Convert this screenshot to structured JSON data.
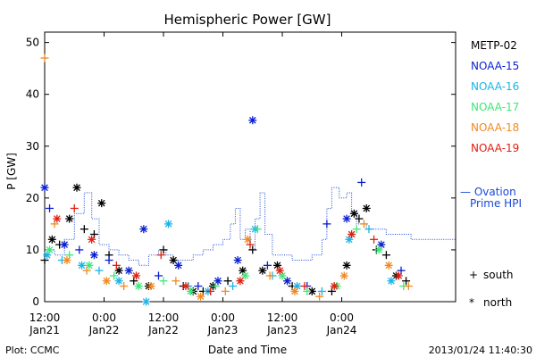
{
  "chart_data": {
    "type": "scatter",
    "title": "Hemispheric Power [GW]",
    "ylabel": "P [GW]",
    "xlabel": "Date and Time",
    "ylim": [
      0,
      52
    ],
    "xlim": [
      "2013-01-21 12:00",
      "2013-01-24 23:00"
    ],
    "y_ticks": [
      0,
      10,
      20,
      30,
      40,
      50
    ],
    "x_ticks": [
      {
        "time": "2013-01-21 12:00",
        "label": "12:00",
        "sub": "Jan21"
      },
      {
        "time": "2013-01-22 00:00",
        "label": "0:00",
        "sub": "Jan22"
      },
      {
        "time": "2013-01-22 12:00",
        "label": "12:00",
        "sub": "Jan22"
      },
      {
        "time": "2013-01-23 00:00",
        "label": "0:00",
        "sub": "Jan23"
      },
      {
        "time": "2013-01-23 12:00",
        "label": "12:00",
        "sub": "Jan23"
      },
      {
        "time": "2013-01-24 00:00",
        "label": "0:00",
        "sub": "Jan24"
      }
    ],
    "legend": [
      {
        "name": "METP-02",
        "color": "#000000"
      },
      {
        "name": "NOAA-15",
        "color": "#0a1fd0"
      },
      {
        "name": "NOAA-16",
        "color": "#1ab4e8"
      },
      {
        "name": "NOAA-17",
        "color": "#3ce878"
      },
      {
        "name": "NOAA-18",
        "color": "#f08a20"
      },
      {
        "name": "NOAA-19",
        "color": "#e02010"
      }
    ],
    "ovation": {
      "label_line1": "— Ovation",
      "label_line2": "Prime HPI",
      "color": "#1a48d8",
      "series": [
        [
          "2013-01-21 12:00",
          10
        ],
        [
          "2013-01-21 14:00",
          9
        ],
        [
          "2013-01-21 16:00",
          12
        ],
        [
          "2013-01-21 18:00",
          17
        ],
        [
          "2013-01-21 20:00",
          21
        ],
        [
          "2013-01-21 21:30",
          16
        ],
        [
          "2013-01-21 23:00",
          11
        ],
        [
          "2013-01-22 01:00",
          10
        ],
        [
          "2013-01-22 03:00",
          9
        ],
        [
          "2013-01-22 05:00",
          8
        ],
        [
          "2013-01-22 07:00",
          7
        ],
        [
          "2013-01-22 09:00",
          9
        ],
        [
          "2013-01-22 11:00",
          10
        ],
        [
          "2013-01-22 12:30",
          9
        ],
        [
          "2013-01-22 14:00",
          8
        ],
        [
          "2013-01-22 16:00",
          8
        ],
        [
          "2013-01-22 18:00",
          9
        ],
        [
          "2013-01-22 20:00",
          10
        ],
        [
          "2013-01-22 22:00",
          11
        ],
        [
          "2013-01-23 00:00",
          12
        ],
        [
          "2013-01-23 01:30",
          15
        ],
        [
          "2013-01-23 02:30",
          18
        ],
        [
          "2013-01-23 03:30",
          12
        ],
        [
          "2013-01-23 04:30",
          14
        ],
        [
          "2013-01-23 05:30",
          10
        ],
        [
          "2013-01-23 06:30",
          16
        ],
        [
          "2013-01-23 07:30",
          21
        ],
        [
          "2013-01-23 08:30",
          13
        ],
        [
          "2013-01-23 10:00",
          9
        ],
        [
          "2013-01-23 12:00",
          9
        ],
        [
          "2013-01-23 14:00",
          8
        ],
        [
          "2013-01-23 16:00",
          8
        ],
        [
          "2013-01-23 18:00",
          9
        ],
        [
          "2013-01-23 20:00",
          12
        ],
        [
          "2013-01-23 21:00",
          18
        ],
        [
          "2013-01-23 22:00",
          22
        ],
        [
          "2013-01-23 23:30",
          20
        ],
        [
          "2013-01-24 01:00",
          21
        ],
        [
          "2013-01-24 02:00",
          17
        ],
        [
          "2013-01-24 03:00",
          15
        ],
        [
          "2013-01-24 05:00",
          14
        ],
        [
          "2013-01-24 07:00",
          14
        ],
        [
          "2013-01-24 09:00",
          13
        ],
        [
          "2013-01-24 11:00",
          13
        ],
        [
          "2013-01-24 14:00",
          12
        ]
      ]
    },
    "series": [
      {
        "name": "METP-02",
        "color": "#000000",
        "points": [
          [
            "2013-01-21 12:00",
            8,
            "s"
          ],
          [
            "2013-01-21 13:30",
            12,
            "n"
          ],
          [
            "2013-01-21 15:00",
            11,
            "s"
          ],
          [
            "2013-01-21 17:00",
            16,
            "n"
          ],
          [
            "2013-01-21 18:30",
            22,
            "n"
          ],
          [
            "2013-01-21 20:00",
            14,
            "s"
          ],
          [
            "2013-01-21 22:00",
            13,
            "s"
          ],
          [
            "2013-01-21 23:30",
            19,
            "n"
          ],
          [
            "2013-01-22 01:00",
            9,
            "s"
          ],
          [
            "2013-01-22 03:00",
            6,
            "n"
          ],
          [
            "2013-01-22 06:00",
            4,
            "s"
          ],
          [
            "2013-01-22 09:00",
            3,
            "n"
          ],
          [
            "2013-01-22 12:00",
            10,
            "s"
          ],
          [
            "2013-01-22 14:00",
            8,
            "n"
          ],
          [
            "2013-01-22 16:00",
            3,
            "s"
          ],
          [
            "2013-01-22 18:00",
            2,
            "n"
          ],
          [
            "2013-01-22 20:00",
            2,
            "s"
          ],
          [
            "2013-01-22 22:00",
            3,
            "n"
          ],
          [
            "2013-01-23 01:00",
            4,
            "s"
          ],
          [
            "2013-01-23 04:00",
            6,
            "n"
          ],
          [
            "2013-01-23 06:00",
            10,
            "s"
          ],
          [
            "2013-01-23 08:00",
            6,
            "n"
          ],
          [
            "2013-01-23 11:00",
            7,
            "n"
          ],
          [
            "2013-01-23 14:00",
            3,
            "s"
          ],
          [
            "2013-01-23 18:00",
            2,
            "n"
          ],
          [
            "2013-01-23 22:00",
            2,
            "s"
          ],
          [
            "2013-01-24 01:00",
            7,
            "n"
          ],
          [
            "2013-01-24 02:30",
            17,
            "n"
          ],
          [
            "2013-01-24 03:30",
            16,
            "s"
          ],
          [
            "2013-01-24 05:00",
            18,
            "n"
          ],
          [
            "2013-01-24 07:00",
            10,
            "s"
          ],
          [
            "2013-01-24 09:00",
            9,
            "s"
          ],
          [
            "2013-01-24 11:00",
            5,
            "n"
          ],
          [
            "2013-01-24 13:00",
            4,
            "s"
          ]
        ]
      },
      {
        "name": "NOAA-15",
        "color": "#0a1fd0",
        "points": [
          [
            "2013-01-21 12:00",
            22,
            "n"
          ],
          [
            "2013-01-21 13:00",
            18,
            "s"
          ],
          [
            "2013-01-21 16:00",
            11,
            "n"
          ],
          [
            "2013-01-21 19:00",
            10,
            "s"
          ],
          [
            "2013-01-21 22:00",
            9,
            "n"
          ],
          [
            "2013-01-22 01:00",
            8,
            "s"
          ],
          [
            "2013-01-22 05:00",
            6,
            "n"
          ],
          [
            "2013-01-22 08:00",
            14,
            "n"
          ],
          [
            "2013-01-22 11:00",
            5,
            "s"
          ],
          [
            "2013-01-22 15:00",
            7,
            "n"
          ],
          [
            "2013-01-22 19:00",
            3,
            "s"
          ],
          [
            "2013-01-22 23:00",
            4,
            "n"
          ],
          [
            "2013-01-23 03:00",
            8,
            "n"
          ],
          [
            "2013-01-23 06:00",
            35,
            "n"
          ],
          [
            "2013-01-23 09:00",
            7,
            "s"
          ],
          [
            "2013-01-23 13:00",
            4,
            "n"
          ],
          [
            "2013-01-23 17:00",
            3,
            "s"
          ],
          [
            "2013-01-23 21:00",
            15,
            "s"
          ],
          [
            "2013-01-24 01:00",
            16,
            "n"
          ],
          [
            "2013-01-24 04:00",
            23,
            "s"
          ],
          [
            "2013-01-24 08:00",
            11,
            "n"
          ],
          [
            "2013-01-24 12:00",
            6,
            "s"
          ]
        ]
      },
      {
        "name": "NOAA-16",
        "color": "#1ab4e8",
        "points": [
          [
            "2013-01-21 12:30",
            9,
            "n"
          ],
          [
            "2013-01-21 15:30",
            8,
            "s"
          ],
          [
            "2013-01-21 19:30",
            7,
            "n"
          ],
          [
            "2013-01-21 23:00",
            6,
            "s"
          ],
          [
            "2013-01-22 03:00",
            4,
            "n"
          ],
          [
            "2013-01-22 08:30",
            0,
            "n"
          ],
          [
            "2013-01-22 13:00",
            15,
            "n"
          ],
          [
            "2013-01-22 17:00",
            3,
            "s"
          ],
          [
            "2013-01-22 21:00",
            2,
            "n"
          ],
          [
            "2013-01-23 02:00",
            3,
            "s"
          ],
          [
            "2013-01-23 06:30",
            14,
            "n"
          ],
          [
            "2013-01-23 10:00",
            5,
            "s"
          ],
          [
            "2013-01-23 15:00",
            3,
            "n"
          ],
          [
            "2013-01-23 20:00",
            2,
            "s"
          ],
          [
            "2013-01-24 01:30",
            12,
            "n"
          ],
          [
            "2013-01-24 05:30",
            14,
            "s"
          ],
          [
            "2013-01-24 10:00",
            4,
            "n"
          ]
        ]
      },
      {
        "name": "NOAA-17",
        "color": "#3ce878",
        "points": [
          [
            "2013-01-21 13:00",
            10,
            "n"
          ],
          [
            "2013-01-21 17:00",
            9,
            "s"
          ],
          [
            "2013-01-21 21:00",
            7,
            "n"
          ],
          [
            "2013-01-22 02:00",
            5,
            "s"
          ],
          [
            "2013-01-22 07:00",
            3,
            "n"
          ],
          [
            "2013-01-22 12:00",
            4,
            "s"
          ],
          [
            "2013-01-22 17:30",
            2,
            "n"
          ],
          [
            "2013-01-22 22:30",
            3,
            "s"
          ],
          [
            "2013-01-23 04:30",
            5,
            "n"
          ],
          [
            "2013-01-23 07:00",
            14,
            "s"
          ],
          [
            "2013-01-23 12:00",
            5,
            "n"
          ],
          [
            "2013-01-23 17:00",
            2,
            "s"
          ],
          [
            "2013-01-23 23:00",
            3,
            "n"
          ],
          [
            "2013-01-24 03:00",
            14,
            "s"
          ],
          [
            "2013-01-24 07:30",
            10,
            "n"
          ],
          [
            "2013-01-24 12:30",
            3,
            "s"
          ]
        ]
      },
      {
        "name": "NOAA-18",
        "color": "#f08a20",
        "points": [
          [
            "2013-01-21 12:00",
            47,
            "s"
          ],
          [
            "2013-01-21 14:00",
            15,
            "s"
          ],
          [
            "2013-01-21 16:30",
            8,
            "n"
          ],
          [
            "2013-01-21 20:30",
            6,
            "s"
          ],
          [
            "2013-01-22 00:30",
            4,
            "n"
          ],
          [
            "2013-01-22 04:00",
            3,
            "s"
          ],
          [
            "2013-01-22 09:30",
            3,
            "n"
          ],
          [
            "2013-01-22 14:30",
            4,
            "s"
          ],
          [
            "2013-01-22 19:30",
            1,
            "n"
          ],
          [
            "2013-01-23 00:30",
            2,
            "s"
          ],
          [
            "2013-01-23 05:00",
            12,
            "n"
          ],
          [
            "2013-01-23 09:30",
            5,
            "s"
          ],
          [
            "2013-01-23 14:30",
            2,
            "n"
          ],
          [
            "2013-01-23 19:30",
            1,
            "s"
          ],
          [
            "2013-01-24 00:30",
            5,
            "n"
          ],
          [
            "2013-01-24 04:30",
            15,
            "s"
          ],
          [
            "2013-01-24 09:30",
            7,
            "n"
          ],
          [
            "2013-01-24 13:30",
            3,
            "s"
          ]
        ]
      },
      {
        "name": "NOAA-19",
        "color": "#e02010",
        "points": [
          [
            "2013-01-21 14:30",
            16,
            "n"
          ],
          [
            "2013-01-21 18:00",
            18,
            "s"
          ],
          [
            "2013-01-21 21:30",
            12,
            "n"
          ],
          [
            "2013-01-22 02:30",
            7,
            "s"
          ],
          [
            "2013-01-22 06:30",
            5,
            "n"
          ],
          [
            "2013-01-22 11:30",
            9,
            "s"
          ],
          [
            "2013-01-22 16:30",
            3,
            "n"
          ],
          [
            "2013-01-22 21:30",
            2,
            "s"
          ],
          [
            "2013-01-23 03:30",
            4,
            "n"
          ],
          [
            "2013-01-23 05:30",
            11,
            "s"
          ],
          [
            "2013-01-23 11:30",
            6,
            "n"
          ],
          [
            "2013-01-23 16:30",
            3,
            "s"
          ],
          [
            "2013-01-23 22:30",
            3,
            "n"
          ],
          [
            "2013-01-24 02:00",
            13,
            "n"
          ],
          [
            "2013-01-24 06:30",
            12,
            "s"
          ],
          [
            "2013-01-24 11:30",
            5,
            "n"
          ]
        ]
      }
    ],
    "marker_key": [
      {
        "symbol": "+",
        "label": "south"
      },
      {
        "symbol": "*",
        "label": "north"
      }
    ]
  },
  "footer": {
    "left": "Plot: CCMC",
    "right": "2013/01/24 11:40:30"
  }
}
